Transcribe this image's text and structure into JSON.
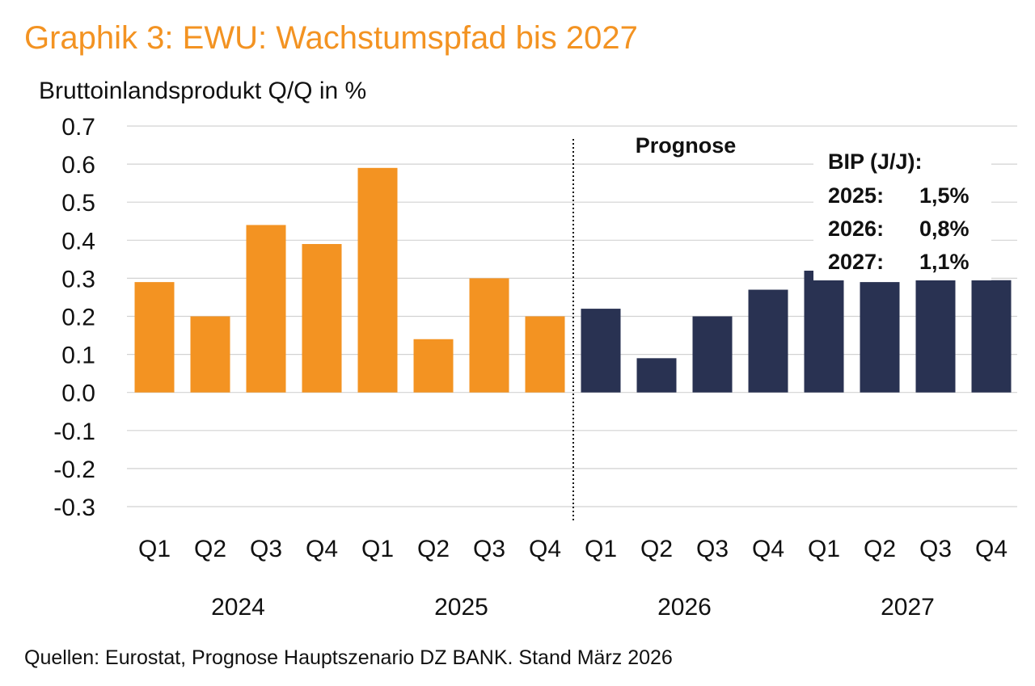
{
  "chart_data": {
    "type": "bar",
    "title": "Graphik 3: EWU: Wachstumspfad bis 2027",
    "ylabel": "Bruttoinlandsprodukt Q/Q in %",
    "source": "Quellen: Eurostat, Prognose Hauptszenario DZ BANK. Stand März 2026",
    "ylim": [
      -0.3,
      0.7
    ],
    "yticks": [
      "0.7",
      "0.6",
      "0.5",
      "0.4",
      "0.3",
      "0.2",
      "0.1",
      "0.0",
      "-0.1",
      "-0.2",
      "-0.3"
    ],
    "grid": true,
    "categories": [
      "Q1",
      "Q2",
      "Q3",
      "Q4",
      "Q1",
      "Q2",
      "Q3",
      "Q4",
      "Q1",
      "Q2",
      "Q3",
      "Q4",
      "Q1",
      "Q2",
      "Q3",
      "Q4"
    ],
    "years": [
      "2024",
      "2025",
      "2026",
      "2027"
    ],
    "values": [
      0.29,
      0.2,
      0.44,
      0.39,
      0.59,
      0.14,
      0.3,
      0.2,
      0.22,
      0.09,
      0.2,
      0.27,
      0.32,
      0.29,
      0.295,
      0.295
    ],
    "forecast_start_index": 8,
    "forecast_label": "Prognose",
    "colors": {
      "actual": "#F39322",
      "forecast": "#293252",
      "title": "#F39322",
      "grid": "#d2d2d2",
      "text": "#111111"
    },
    "annotation": {
      "heading": "BIP (J/J):",
      "rows": [
        {
          "year": "2025:",
          "value": "1,5%"
        },
        {
          "year": "2026:",
          "value": "0,8%"
        },
        {
          "year": "2027:",
          "value": "1,1%"
        }
      ]
    }
  }
}
